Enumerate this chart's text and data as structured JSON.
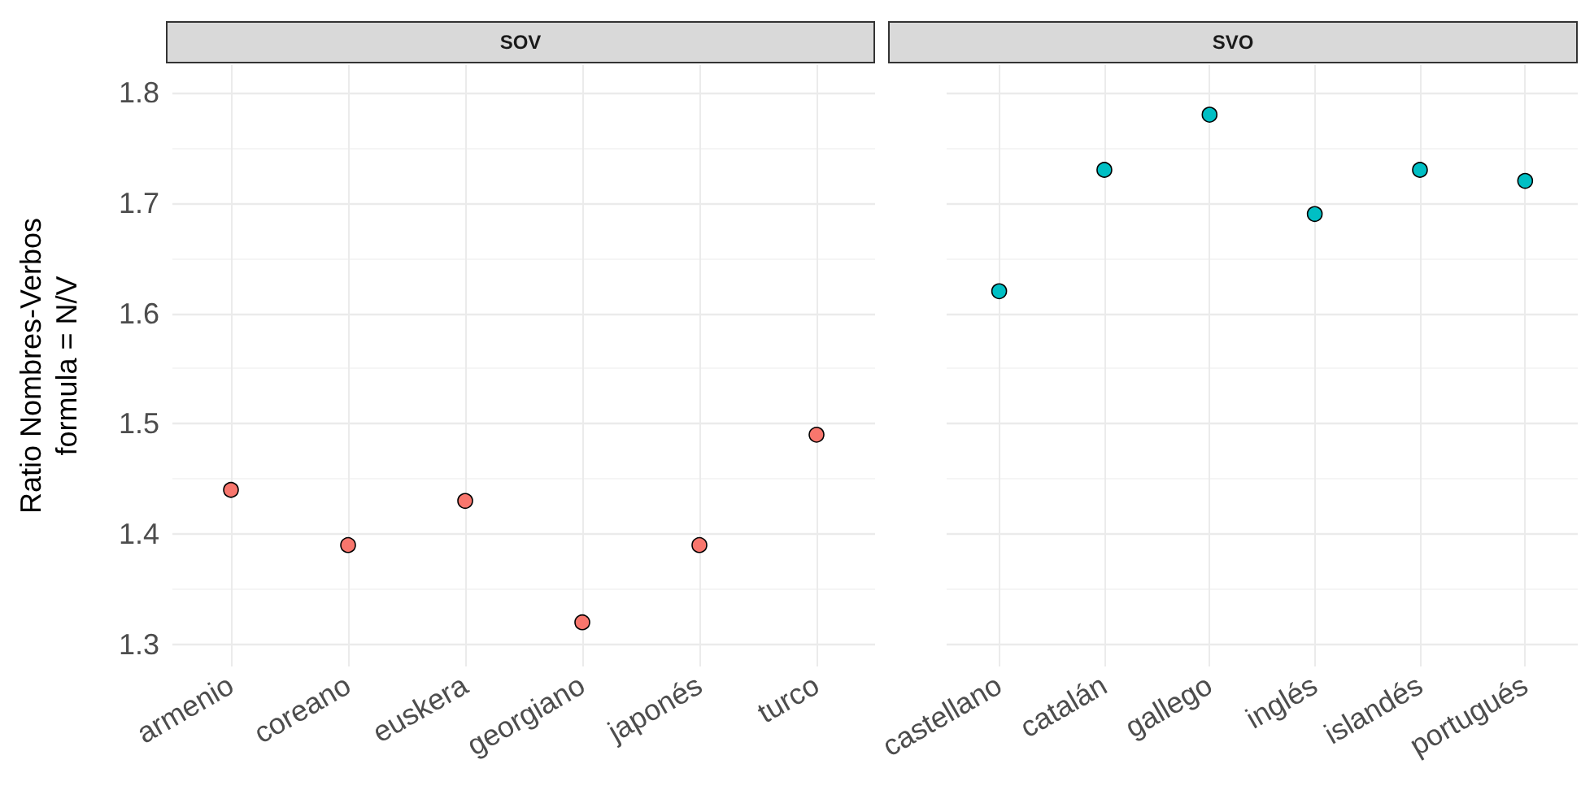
{
  "chart_data": [
    {
      "type": "scatter",
      "title": "SOV",
      "ylabel": "Ratio Nombres-Verbos\nformula = N/V",
      "categories": [
        "armenio",
        "coreano",
        "euskera",
        "georgiano",
        "japonés",
        "turco"
      ],
      "series": [
        {
          "color": "#f8766d",
          "values": [
            1.44,
            1.39,
            1.43,
            1.32,
            1.39,
            1.49
          ]
        }
      ],
      "ylim": [
        1.28,
        1.825
      ],
      "yticks": [
        1.3,
        1.4,
        1.5,
        1.6,
        1.7,
        1.8
      ],
      "grid": true,
      "marker": "circle"
    },
    {
      "type": "scatter",
      "title": "SVO",
      "categories": [
        "castellano",
        "catalán",
        "gallego",
        "inglés",
        "islandés",
        "portugués"
      ],
      "series": [
        {
          "color": "#00bfc4",
          "values": [
            1.62,
            1.73,
            1.78,
            1.69,
            1.73,
            1.72
          ]
        }
      ],
      "ylim": [
        1.28,
        1.825
      ],
      "yticks": [
        1.3,
        1.4,
        1.5,
        1.6,
        1.7,
        1.8
      ],
      "grid": true,
      "marker": "circle",
      "tick_labels": "x"
    }
  ]
}
